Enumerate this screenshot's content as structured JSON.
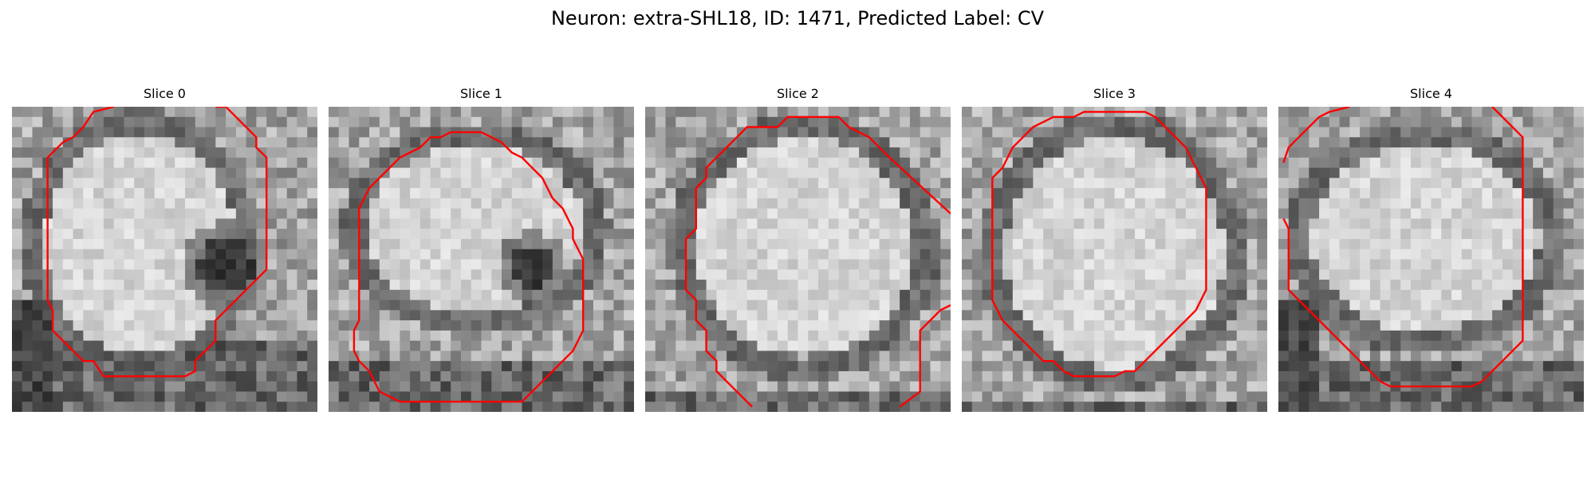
{
  "figure": {
    "title": "Neuron: extra-SHL18, ID: 1471, Predicted Label: CV"
  },
  "colors": {
    "contour": "#ff0000",
    "background": "#ffffff"
  },
  "slices": [
    {
      "title": "Slice 0"
    },
    {
      "title": "Slice 1"
    },
    {
      "title": "Slice 2"
    },
    {
      "title": "Slice 3"
    },
    {
      "title": "Slice 4"
    }
  ]
}
